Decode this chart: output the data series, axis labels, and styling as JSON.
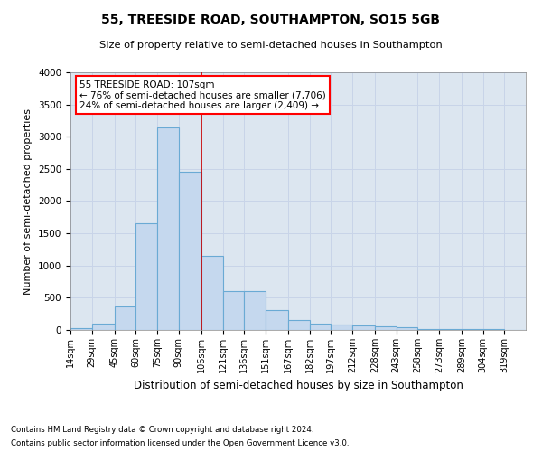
{
  "title": "55, TREESIDE ROAD, SOUTHAMPTON, SO15 5GB",
  "subtitle": "Size of property relative to semi-detached houses in Southampton",
  "xlabel": "Distribution of semi-detached houses by size in Southampton",
  "ylabel": "Number of semi-detached properties",
  "footnote1": "Contains HM Land Registry data © Crown copyright and database right 2024.",
  "footnote2": "Contains public sector information licensed under the Open Government Licence v3.0.",
  "bar_color": "#c5d8ee",
  "bar_edge_color": "#6aaad4",
  "vline_color": "#cc0000",
  "vline_x": 106,
  "annotation_title": "55 TREESIDE ROAD: 107sqm",
  "annotation_line1": "← 76% of semi-detached houses are smaller (7,706)",
  "annotation_line2": "24% of semi-detached houses are larger (2,409) →",
  "categories": [
    "14sqm",
    "29sqm",
    "45sqm",
    "60sqm",
    "75sqm",
    "90sqm",
    "106sqm",
    "121sqm",
    "136sqm",
    "151sqm",
    "167sqm",
    "182sqm",
    "197sqm",
    "212sqm",
    "228sqm",
    "243sqm",
    "258sqm",
    "273sqm",
    "289sqm",
    "304sqm",
    "319sqm"
  ],
  "bin_edges": [
    14,
    29,
    45,
    60,
    75,
    90,
    106,
    121,
    136,
    151,
    167,
    182,
    197,
    212,
    228,
    243,
    258,
    273,
    289,
    304,
    319,
    334
  ],
  "values": [
    30,
    100,
    360,
    1650,
    3150,
    2450,
    1150,
    600,
    600,
    310,
    160,
    100,
    80,
    70,
    55,
    40,
    20,
    15,
    10,
    8,
    5
  ],
  "ylim": [
    0,
    4000
  ],
  "yticks": [
    0,
    500,
    1000,
    1500,
    2000,
    2500,
    3000,
    3500,
    4000
  ],
  "grid_color": "#c8d4e8",
  "background_color": "#dce6f0"
}
